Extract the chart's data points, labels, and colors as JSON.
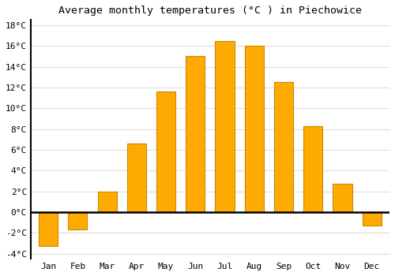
{
  "title": "Average monthly temperatures (°C ) in Piechowice",
  "months": [
    "Jan",
    "Feb",
    "Mar",
    "Apr",
    "May",
    "Jun",
    "Jul",
    "Aug",
    "Sep",
    "Oct",
    "Nov",
    "Dec"
  ],
  "values": [
    -3.3,
    -1.7,
    2.0,
    6.6,
    11.6,
    15.0,
    16.5,
    16.0,
    12.5,
    8.3,
    2.7,
    -1.3
  ],
  "bar_color": "#FFAA00",
  "bar_edge_color": "#CC8800",
  "ylim": [
    -4.5,
    18.5
  ],
  "yticks": [
    -4,
    -2,
    0,
    2,
    4,
    6,
    8,
    10,
    12,
    14,
    16,
    18
  ],
  "ytick_labels": [
    "-4°C",
    "-2°C",
    "0°C",
    "2°C",
    "4°C",
    "6°C",
    "8°C",
    "10°C",
    "12°C",
    "14°C",
    "16°C",
    "18°C"
  ],
  "background_color": "#ffffff",
  "grid_color": "#dddddd",
  "title_fontsize": 9.5,
  "tick_fontsize": 8,
  "font_family": "monospace"
}
